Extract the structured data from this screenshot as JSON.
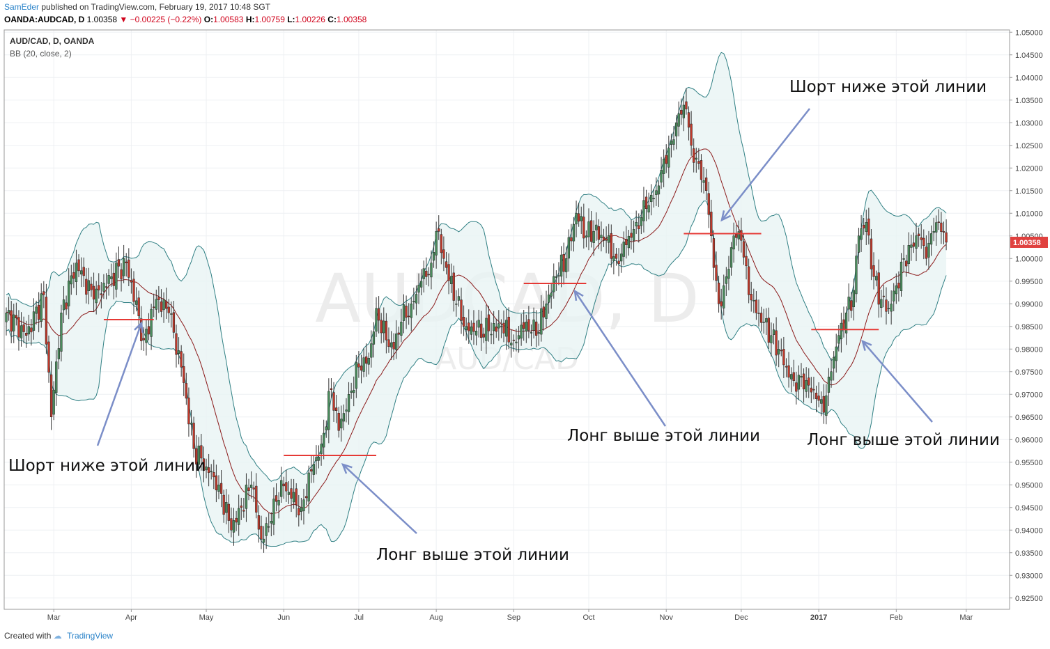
{
  "header": {
    "author": "SamEder",
    "published": "published on TradingView.com, February 19, 2017 10:48 SGT",
    "symbol": "OANDA:AUDCAD, D",
    "last": "1.00358",
    "change": "−0.00225 (−0.22%)",
    "o_label": "O:",
    "o_value": "1.00583",
    "h_label": "H:",
    "h_value": "1.00759",
    "l_label": "L:",
    "l_value": "1.00226",
    "c_label": "C:",
    "c_value": "1.00358"
  },
  "legend": {
    "title": "AUD/CAD, D, OANDA",
    "indicator": "BB (20, close, 2)"
  },
  "watermark": {
    "main": "AUDCAD, D",
    "sub": "AUD/CAD"
  },
  "footer": {
    "created": "Created with",
    "brand": "TradingView"
  },
  "colors": {
    "up": "#4a8c5c",
    "down": "#c0392b",
    "basis": "#8b1a1a",
    "band": "#2f7f83",
    "fill": "#e8f4f4",
    "level": "#e53935",
    "arrow": "#7b8ec8",
    "price_tag": "#e0413f"
  },
  "chart_data": {
    "type": "candlestick",
    "symbol": "AUD/CAD",
    "timeframe": "D",
    "indicator": "Bollinger Bands (20, close, 2)",
    "ylim": [
      0.9225,
      1.0505
    ],
    "y_ticks": [
      "0.92500",
      "0.93000",
      "0.93500",
      "0.94000",
      "0.94500",
      "0.95000",
      "0.95500",
      "0.96000",
      "0.96500",
      "0.97000",
      "0.97500",
      "0.98000",
      "0.98500",
      "0.99000",
      "0.99500",
      "1.00000",
      "1.00500",
      "1.01000",
      "1.01500",
      "1.02000",
      "1.02500",
      "1.03000",
      "1.03500",
      "1.04000",
      "1.04500",
      "1.05000"
    ],
    "x_ticks": [
      {
        "label": "Mar",
        "day": 19
      },
      {
        "label": "Apr",
        "day": 50
      },
      {
        "label": "May",
        "day": 80
      },
      {
        "label": "Jun",
        "day": 111
      },
      {
        "label": "Jul",
        "day": 141
      },
      {
        "label": "Aug",
        "day": 172
      },
      {
        "label": "Sep",
        "day": 203
      },
      {
        "label": "Oct",
        "day": 233
      },
      {
        "label": "Nov",
        "day": 264
      },
      {
        "label": "Dec",
        "day": 294
      },
      {
        "label": "2017",
        "day": 325,
        "bold": true
      },
      {
        "label": "Feb",
        "day": 356
      },
      {
        "label": "Mar",
        "day": 384
      }
    ],
    "current_price": "1.00358",
    "closes_key": [
      [
        0,
        0.988
      ],
      [
        8,
        0.983
      ],
      [
        15,
        0.992
      ],
      [
        18,
        0.965
      ],
      [
        22,
        0.988
      ],
      [
        28,
        0.999
      ],
      [
        35,
        0.991
      ],
      [
        42,
        0.996
      ],
      [
        48,
        0.999
      ],
      [
        55,
        0.982
      ],
      [
        60,
        0.991
      ],
      [
        65,
        0.988
      ],
      [
        70,
        0.976
      ],
      [
        75,
        0.958
      ],
      [
        80,
        0.954
      ],
      [
        85,
        0.95
      ],
      [
        90,
        0.94
      ],
      [
        94,
        0.945
      ],
      [
        98,
        0.95
      ],
      [
        102,
        0.938
      ],
      [
        106,
        0.942
      ],
      [
        110,
        0.951
      ],
      [
        114,
        0.947
      ],
      [
        118,
        0.945
      ],
      [
        122,
        0.953
      ],
      [
        126,
        0.959
      ],
      [
        130,
        0.971
      ],
      [
        133,
        0.962
      ],
      [
        137,
        0.97
      ],
      [
        141,
        0.976
      ],
      [
        145,
        0.978
      ],
      [
        148,
        0.989
      ],
      [
        152,
        0.982
      ],
      [
        155,
        0.98
      ],
      [
        158,
        0.986
      ],
      [
        162,
        0.99
      ],
      [
        166,
        0.995
      ],
      [
        170,
        0.999
      ],
      [
        172,
        1.006
      ],
      [
        175,
        1.0
      ],
      [
        180,
        0.99
      ],
      [
        184,
        0.985
      ],
      [
        188,
        0.984
      ],
      [
        193,
        0.984
      ],
      [
        198,
        0.985
      ],
      [
        203,
        0.982
      ],
      [
        208,
        0.986
      ],
      [
        212,
        0.983
      ],
      [
        216,
        0.99
      ],
      [
        220,
        0.996
      ],
      [
        224,
        1.0
      ],
      [
        228,
        1.01
      ],
      [
        232,
        1.005
      ],
      [
        235,
        1.006
      ],
      [
        240,
        1.004
      ],
      [
        244,
        1.0
      ],
      [
        248,
        1.003
      ],
      [
        252,
        1.008
      ],
      [
        256,
        1.011
      ],
      [
        260,
        1.015
      ],
      [
        263,
        1.022
      ],
      [
        266,
        1.026
      ],
      [
        269,
        1.032
      ],
      [
        272,
        1.033
      ],
      [
        274,
        1.025
      ],
      [
        277,
        1.021
      ],
      [
        280,
        1.015
      ],
      [
        282,
        1.005
      ],
      [
        285,
        0.99
      ],
      [
        288,
        0.996
      ],
      [
        291,
        1.005
      ],
      [
        294,
        1.004
      ],
      [
        297,
        0.992
      ],
      [
        300,
        0.988
      ],
      [
        303,
        0.986
      ],
      [
        306,
        0.983
      ],
      [
        309,
        0.98
      ],
      [
        312,
        0.976
      ],
      [
        315,
        0.973
      ],
      [
        318,
        0.974
      ],
      [
        321,
        0.972
      ],
      [
        324,
        0.969
      ],
      [
        327,
        0.966
      ],
      [
        330,
        0.975
      ],
      [
        333,
        0.983
      ],
      [
        336,
        0.988
      ],
      [
        339,
        0.993
      ],
      [
        341,
        1.005
      ],
      [
        344,
        1.008
      ],
      [
        347,
        0.996
      ],
      [
        350,
        0.991
      ],
      [
        353,
        0.989
      ],
      [
        356,
        0.994
      ],
      [
        359,
        1.0
      ],
      [
        362,
        1.003
      ],
      [
        365,
        1.005
      ],
      [
        368,
        1.0
      ],
      [
        371,
        1.006
      ],
      [
        373,
        1.008
      ],
      [
        376,
        1.0036
      ]
    ],
    "levels": [
      {
        "y": 0.9865,
        "from_day": 39,
        "to_day": 59
      },
      {
        "y": 0.9565,
        "from_day": 111,
        "to_day": 148
      },
      {
        "y": 0.9945,
        "from_day": 207,
        "to_day": 232
      },
      {
        "y": 1.0055,
        "from_day": 271,
        "to_day": 302
      },
      {
        "y": 0.9843,
        "from_day": 322,
        "to_day": 349
      }
    ],
    "annotations": [
      {
        "text": "Шорт ниже этой линии",
        "tx": 12,
        "ty": 676,
        "ax1": 140,
        "ay1": 640,
        "ax2": 203,
        "ay2": 464
      },
      {
        "text": "Лонг выше этой линии",
        "tx": 540,
        "ty": 804,
        "ax1": 598,
        "ay1": 766,
        "ax2": 492,
        "ay2": 667
      },
      {
        "text": "Лонг выше этой линии",
        "tx": 814,
        "ty": 633,
        "ax1": 955,
        "ay1": 612,
        "ax2": 825,
        "ay2": 418
      },
      {
        "text": "Шорт ниже этой линии",
        "tx": 1133,
        "ty": 132,
        "ax1": 1162,
        "ay1": 156,
        "ax2": 1036,
        "ay2": 316
      },
      {
        "text": "Лонг выше этой линии",
        "tx": 1158,
        "ty": 639,
        "ax1": 1338,
        "ay1": 606,
        "ax2": 1238,
        "ay2": 490
      }
    ]
  }
}
